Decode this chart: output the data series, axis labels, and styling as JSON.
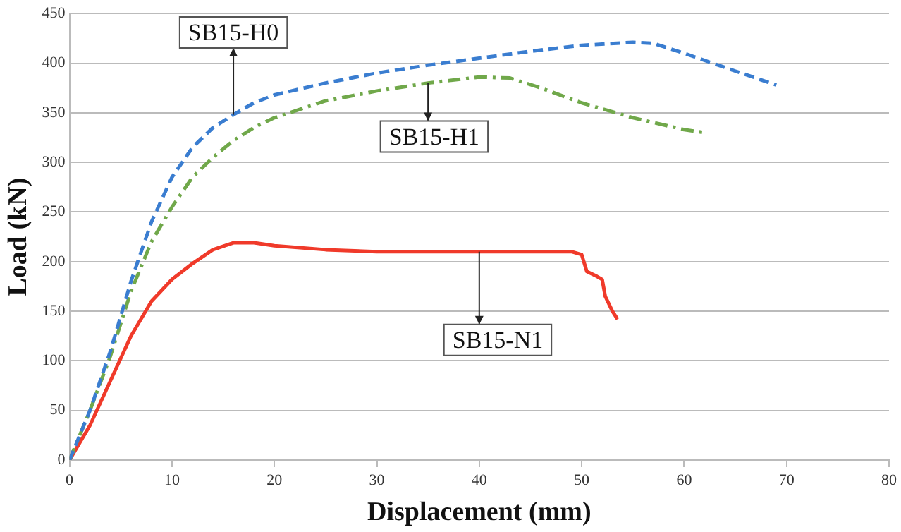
{
  "chart_data": {
    "type": "line",
    "xlabel": "Displacement (mm)",
    "ylabel": "Load (kN)",
    "xlim": [
      0,
      80
    ],
    "xticks": [
      0,
      10,
      20,
      30,
      40,
      50,
      60,
      70,
      80
    ],
    "ylim": [
      0,
      450
    ],
    "yticks": [
      0,
      50,
      100,
      150,
      200,
      250,
      300,
      350,
      400,
      450
    ],
    "grid": "y",
    "legend": false,
    "marker": "none",
    "series": [
      {
        "name": "SB15-H0",
        "color": "#3a7dd0",
        "line_style": "dashed",
        "x": [
          0,
          2,
          4,
          6,
          8,
          10,
          12,
          14,
          16,
          18,
          20,
          25,
          30,
          35,
          40,
          45,
          50,
          55,
          57,
          60,
          65,
          69
        ],
        "values": [
          0,
          50,
          110,
          180,
          240,
          285,
          315,
          335,
          348,
          360,
          368,
          380,
          390,
          398,
          405,
          412,
          418,
          421,
          420,
          410,
          392,
          378
        ]
      },
      {
        "name": "SB15-H1",
        "color": "#70a84a",
        "line_style": "dashdot",
        "x": [
          0,
          2,
          4,
          6,
          8,
          10,
          12,
          14,
          16,
          18,
          20,
          25,
          30,
          35,
          40,
          43,
          46,
          50,
          55,
          60,
          62
        ],
        "values": [
          0,
          50,
          105,
          170,
          220,
          255,
          285,
          305,
          322,
          335,
          345,
          362,
          372,
          380,
          386,
          385,
          375,
          360,
          345,
          333,
          330
        ]
      },
      {
        "name": "SB15-N1",
        "color": "#f03a2a",
        "line_style": "solid",
        "x": [
          0,
          2,
          4,
          6,
          8,
          10,
          12,
          14,
          16,
          18,
          20,
          25,
          30,
          40,
          49,
          50,
          50.5,
          51.5,
          52,
          52.3,
          53,
          53.5
        ],
        "values": [
          0,
          35,
          80,
          125,
          160,
          182,
          198,
          212,
          219,
          219,
          216,
          212,
          210,
          210,
          210,
          207,
          190,
          185,
          182,
          165,
          150,
          142
        ]
      }
    ]
  }
}
